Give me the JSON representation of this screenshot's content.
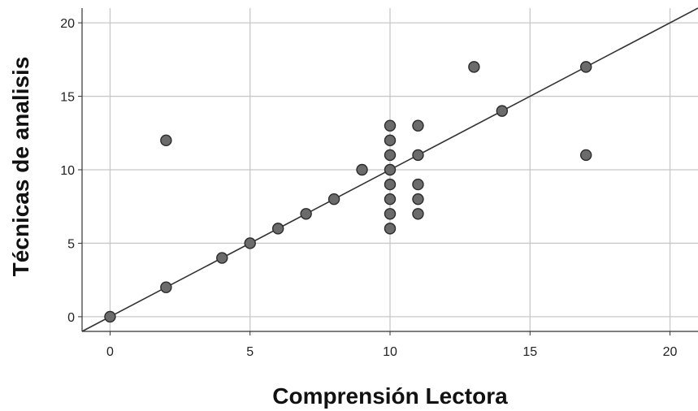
{
  "chart_data": {
    "type": "scatter",
    "xlabel": "Comprensión Lectora",
    "ylabel": "Técnicas de analisis",
    "xlim": [
      -1,
      21
    ],
    "ylim": [
      -1,
      21
    ],
    "xticks": [
      0,
      5,
      10,
      15,
      20
    ],
    "yticks": [
      0,
      5,
      10,
      15,
      20
    ],
    "grid": true,
    "points": [
      {
        "x": 0,
        "y": 0
      },
      {
        "x": 2,
        "y": 2
      },
      {
        "x": 2,
        "y": 12
      },
      {
        "x": 4,
        "y": 4
      },
      {
        "x": 5,
        "y": 5
      },
      {
        "x": 6,
        "y": 6
      },
      {
        "x": 7,
        "y": 7
      },
      {
        "x": 8,
        "y": 8
      },
      {
        "x": 9,
        "y": 10
      },
      {
        "x": 10,
        "y": 6
      },
      {
        "x": 10,
        "y": 7
      },
      {
        "x": 10,
        "y": 8
      },
      {
        "x": 10,
        "y": 9
      },
      {
        "x": 10,
        "y": 10
      },
      {
        "x": 10,
        "y": 11
      },
      {
        "x": 10,
        "y": 12
      },
      {
        "x": 10,
        "y": 13
      },
      {
        "x": 11,
        "y": 7
      },
      {
        "x": 11,
        "y": 8
      },
      {
        "x": 11,
        "y": 9
      },
      {
        "x": 11,
        "y": 11
      },
      {
        "x": 11,
        "y": 13
      },
      {
        "x": 13,
        "y": 17
      },
      {
        "x": 14,
        "y": 14
      },
      {
        "x": 17,
        "y": 17
      },
      {
        "x": 17,
        "y": 11
      }
    ],
    "reference_line": {
      "x": [
        -1,
        21
      ],
      "y": [
        -1,
        21
      ]
    },
    "colors": {
      "marker_fill": "#6b6b6b",
      "marker_stroke": "#2b2b2b",
      "line": "#333333",
      "grid": "#c8c8c8",
      "axis": "#333333"
    }
  }
}
